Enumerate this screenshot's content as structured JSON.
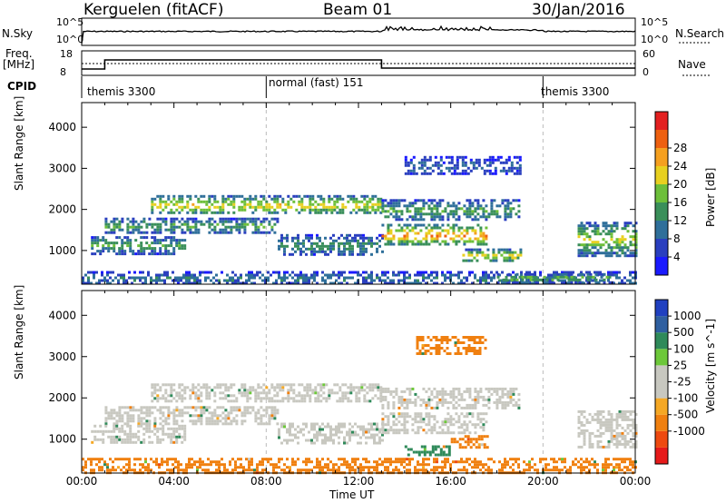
{
  "header": {
    "station": "Kerguelen (fitACF)",
    "beam": "Beam 01",
    "date": "30/Jan/2016"
  },
  "aux_panels": {
    "nsky_label": "N.Sky",
    "nsky_ticks": [
      "10^5",
      "10^0"
    ],
    "nsearch_label": "N.Search",
    "nsearch_ticks": [
      "10^5",
      "10^0"
    ],
    "freq_label_1": "Freq.",
    "freq_label_2": "[MHz]",
    "freq_ticks": [
      "18",
      "8"
    ],
    "nave_label": "Nave",
    "nave_ticks": [
      "60",
      "0"
    ],
    "cpid_label": "CPID",
    "cpid_segments": [
      {
        "name": "themis 3300",
        "start": 0.0,
        "end": 8.0
      },
      {
        "name": "normal (fast) 151",
        "start": 8.0,
        "end": 20.0
      },
      {
        "name": "themis 3300",
        "start": 20.0,
        "end": 24.0
      }
    ]
  },
  "colors": {
    "power_scale": [
      "#1a1aff",
      "#2a3fbf",
      "#2f6f9a",
      "#3a8f5a",
      "#6dbf3a",
      "#e8d020",
      "#f5a020",
      "#ee6010",
      "#e32020"
    ],
    "velocity_scale": [
      "#e61a1a",
      "#ee4a10",
      "#f08010",
      "#f5a825",
      "#c8c8c0",
      "#c8c8c0",
      "#6dc83a",
      "#2f8a5a",
      "#2f5fa0",
      "#2040c0"
    ]
  },
  "chart_data": [
    {
      "type": "heatmap",
      "title": "Power",
      "xlabel": "Time UT",
      "ylabel": "Slant Range [km]",
      "xlim": [
        0,
        24
      ],
      "ylim": [
        180,
        4600
      ],
      "x_ticks": [
        "00:00",
        "04:00",
        "08:00",
        "12:00",
        "16:00",
        "20:00",
        "00:00"
      ],
      "y_ticks": [
        1000,
        2000,
        3000,
        4000
      ],
      "colorbar_label": "Power [dB]",
      "colorbar_ticks": [
        "4",
        "8",
        "12",
        "16",
        "20",
        "24",
        "28"
      ],
      "echo_bands": [
        {
          "x": [
            0.0,
            24.0
          ],
          "y": [
            180,
            500
          ],
          "p": 10
        },
        {
          "x": [
            0.4,
            4.5
          ],
          "y": [
            950,
            1350
          ],
          "p": 14
        },
        {
          "x": [
            3.0,
            13.0
          ],
          "y": [
            1900,
            2350
          ],
          "p": 20
        },
        {
          "x": [
            1.0,
            8.5
          ],
          "y": [
            1450,
            1800
          ],
          "p": 14
        },
        {
          "x": [
            8.5,
            13.0
          ],
          "y": [
            900,
            1400
          ],
          "p": 12
        },
        {
          "x": [
            13.0,
            17.5
          ],
          "y": [
            1150,
            1650
          ],
          "p": 24
        },
        {
          "x": [
            13.0,
            19.0
          ],
          "y": [
            1750,
            2250
          ],
          "p": 14
        },
        {
          "x": [
            16.5,
            19.0
          ],
          "y": [
            750,
            1050
          ],
          "p": 20
        },
        {
          "x": [
            14.0,
            19.0
          ],
          "y": [
            2850,
            3300
          ],
          "p": 8
        },
        {
          "x": [
            21.5,
            24.0
          ],
          "y": [
            900,
            1700
          ],
          "p": 18
        },
        {
          "x": [
            18.0,
            23.0
          ],
          "y": [
            250,
            450
          ],
          "p": 16
        }
      ]
    },
    {
      "type": "heatmap",
      "title": "Velocity",
      "xlabel": "Time UT",
      "ylabel": "Slant Range [km]",
      "xlim": [
        0,
        24
      ],
      "ylim": [
        180,
        4600
      ],
      "x_ticks": [
        "00:00",
        "04:00",
        "08:00",
        "12:00",
        "16:00",
        "20:00",
        "00:00"
      ],
      "y_ticks": [
        1000,
        2000,
        3000,
        4000
      ],
      "colorbar_label": "Velocity [m s^-1]",
      "colorbar_ticks": [
        "1000",
        "500",
        "100",
        "25",
        "-25",
        "-100",
        "-500",
        "-1000"
      ],
      "echo_bands": [
        {
          "x": [
            3.0,
            13.0
          ],
          "y": [
            1900,
            2350
          ],
          "v": 0
        },
        {
          "x": [
            1.0,
            8.5
          ],
          "y": [
            1400,
            1800
          ],
          "v": 0
        },
        {
          "x": [
            0.4,
            4.5
          ],
          "y": [
            950,
            1350
          ],
          "v": 0
        },
        {
          "x": [
            8.5,
            13.0
          ],
          "y": [
            900,
            1400
          ],
          "v": 0
        },
        {
          "x": [
            13.0,
            17.5
          ],
          "y": [
            1150,
            1650
          ],
          "v": 0
        },
        {
          "x": [
            13.0,
            19.0
          ],
          "y": [
            1750,
            2250
          ],
          "v": 0
        },
        {
          "x": [
            16.0,
            17.6
          ],
          "y": [
            800,
            1100
          ],
          "v": -200
        },
        {
          "x": [
            14.0,
            16.0
          ],
          "y": [
            650,
            850
          ],
          "v": 150
        },
        {
          "x": [
            21.5,
            24.0
          ],
          "y": [
            800,
            1700
          ],
          "v": 0
        },
        {
          "x": [
            0.0,
            24.0
          ],
          "y": [
            180,
            550
          ],
          "v": -150
        },
        {
          "x": [
            14.5,
            17.5
          ],
          "y": [
            3100,
            3500
          ],
          "v": -150
        }
      ]
    }
  ]
}
